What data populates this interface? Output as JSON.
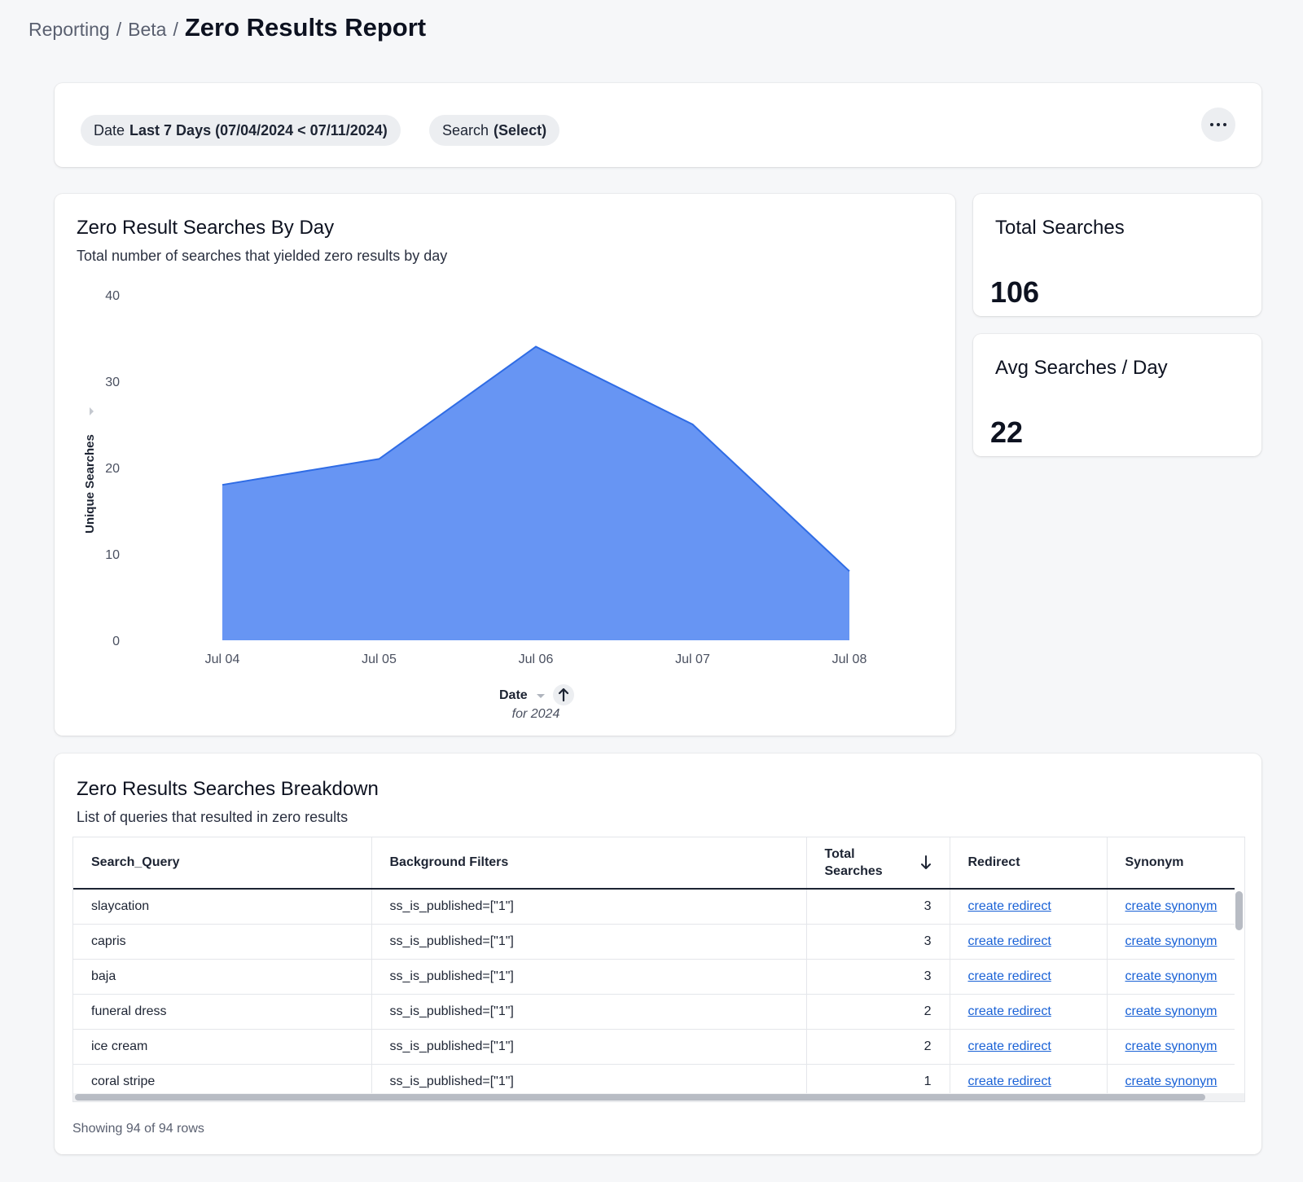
{
  "breadcrumb": {
    "items": [
      "Reporting",
      "Beta"
    ],
    "separator": "/",
    "current": "Zero Results Report"
  },
  "filters": {
    "date": {
      "label": "Date",
      "value": "Last 7 Days (07/04/2024 < 07/11/2024)"
    },
    "search": {
      "label": "Search",
      "value": "(Select)"
    },
    "more_icon": "more-horizontal-icon"
  },
  "chart": {
    "title": "Zero Result Searches By Day",
    "subtitle": "Total number of searches that yielded zero results by day",
    "x_caption": "for 2024",
    "sort_icon": "arrow-up-icon",
    "dropdown_icon": "caret-down-icon"
  },
  "chart_data": {
    "type": "area",
    "x": [
      "Jul 04",
      "Jul 05",
      "Jul 06",
      "Jul 07",
      "Jul 08"
    ],
    "series": [
      {
        "values": [
          18,
          21,
          34,
          25,
          8
        ]
      }
    ],
    "xlabel": "Date",
    "ylabel": "Unique Searches",
    "ylim": [
      0,
      40
    ],
    "yticks": [
      0,
      10,
      20,
      30,
      40
    ],
    "grid": false,
    "color": "#6795f3",
    "line_color": "#2f6ce5"
  },
  "kpis": {
    "total": {
      "title": "Total Searches",
      "value": "106"
    },
    "avg": {
      "title": "Avg Searches / Day",
      "value": "22"
    }
  },
  "table": {
    "title": "Zero Results Searches Breakdown",
    "subtitle": "List of queries that resulted in zero results",
    "columns": [
      "Search_Query",
      "Background Filters",
      "Total Searches",
      "Redirect",
      "Synonym"
    ],
    "sort_icon": "arrow-down-icon",
    "rows": [
      {
        "query": "slaycation",
        "filters": "ss_is_published=[\"1\"]",
        "total": "3",
        "redirect": "create redirect",
        "synonym": "create synonym"
      },
      {
        "query": "capris",
        "filters": "ss_is_published=[\"1\"]",
        "total": "3",
        "redirect": "create redirect",
        "synonym": "create synonym"
      },
      {
        "query": "baja",
        "filters": "ss_is_published=[\"1\"]",
        "total": "3",
        "redirect": "create redirect",
        "synonym": "create synonym"
      },
      {
        "query": "funeral dress",
        "filters": "ss_is_published=[\"1\"]",
        "total": "2",
        "redirect": "create redirect",
        "synonym": "create synonym"
      },
      {
        "query": "ice cream",
        "filters": "ss_is_published=[\"1\"]",
        "total": "2",
        "redirect": "create redirect",
        "synonym": "create synonym"
      },
      {
        "query": "coral stripe",
        "filters": "ss_is_published=[\"1\"]",
        "total": "1",
        "redirect": "create redirect",
        "synonym": "create synonym"
      }
    ],
    "row_count": "Showing 94 of 94 rows"
  }
}
